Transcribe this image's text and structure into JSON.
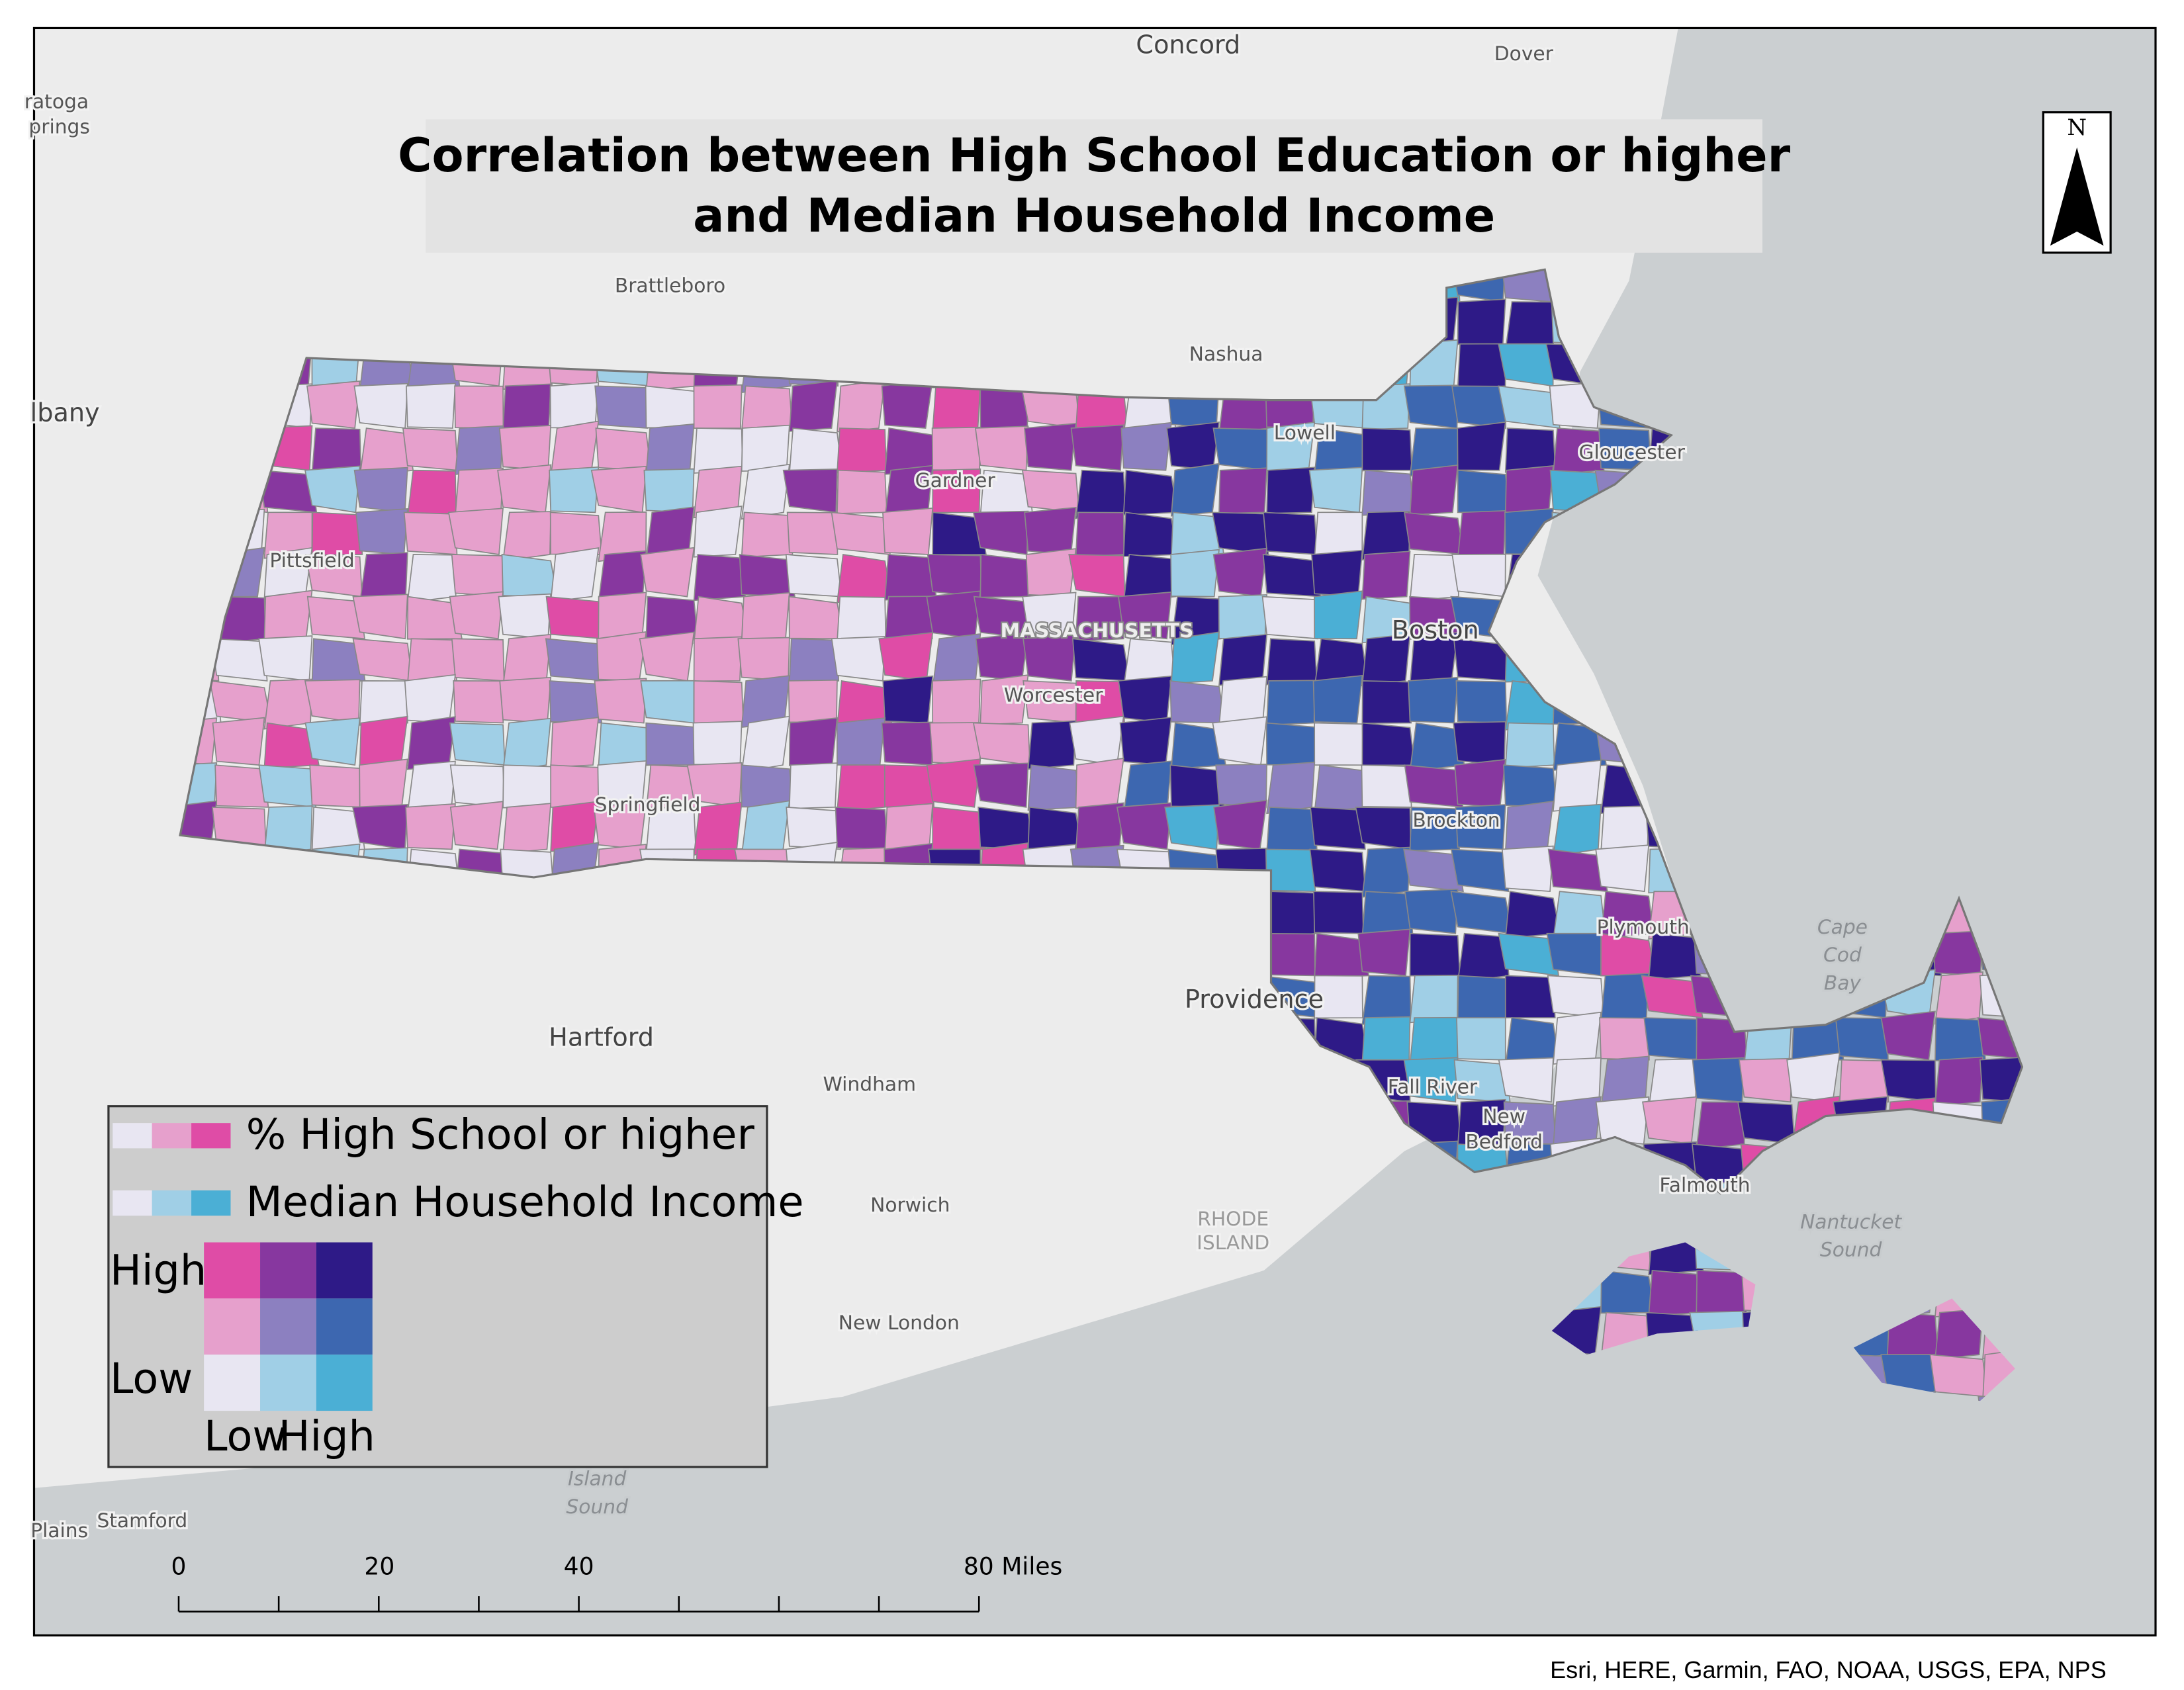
{
  "map": {
    "title_lines": [
      "Correlation between High School Education or higher",
      "and Median Household Income"
    ],
    "places": [
      "Concord",
      "Dover",
      "ratoga",
      "prings",
      "lbany",
      "Brattleboro",
      "Nashua",
      "Lowell",
      "Gloucester",
      "Gardner",
      "Pittsfield",
      "MASSACHUSETTS",
      "Boston",
      "Worcester",
      "Springfield",
      "Brockton",
      "Plymouth",
      "Cape",
      "Cod",
      "Bay",
      "Providence",
      "Hartford",
      "Windham",
      "Fall River",
      "New",
      "Bedford",
      "Falmouth",
      "Norwich",
      "RHODE",
      "ISLAND",
      "Nantucket",
      "Sound",
      "New London",
      "Island",
      "Sound",
      "Stamford",
      "Plains"
    ],
    "legend": {
      "education_label": "% High School or higher",
      "education_colors": [
        "#e8e6f2",
        "#e6a0cc",
        "#df4ca6"
      ],
      "income_label": "Median Household Income",
      "income_colors": [
        "#e8e6f2",
        "#a0cfe6",
        "#4bafd5"
      ],
      "grid_colors": [
        [
          "#df4ca6",
          "#87379f",
          "#2e1a87"
        ],
        [
          "#e6a0cc",
          "#8c80c0",
          "#3d67b0"
        ],
        [
          "#e8e6f2",
          "#a0cfe6",
          "#4bafd5"
        ]
      ],
      "high": "High",
      "low": "Low",
      "x_low": "Low",
      "x_high": "High"
    },
    "north": "N",
    "scale_bar": [
      "0",
      "20",
      "40",
      "80 Miles"
    ],
    "attribution": "Esri, HERE, Garmin, FAO, NOAA, USGS, EPA, NPS"
  }
}
